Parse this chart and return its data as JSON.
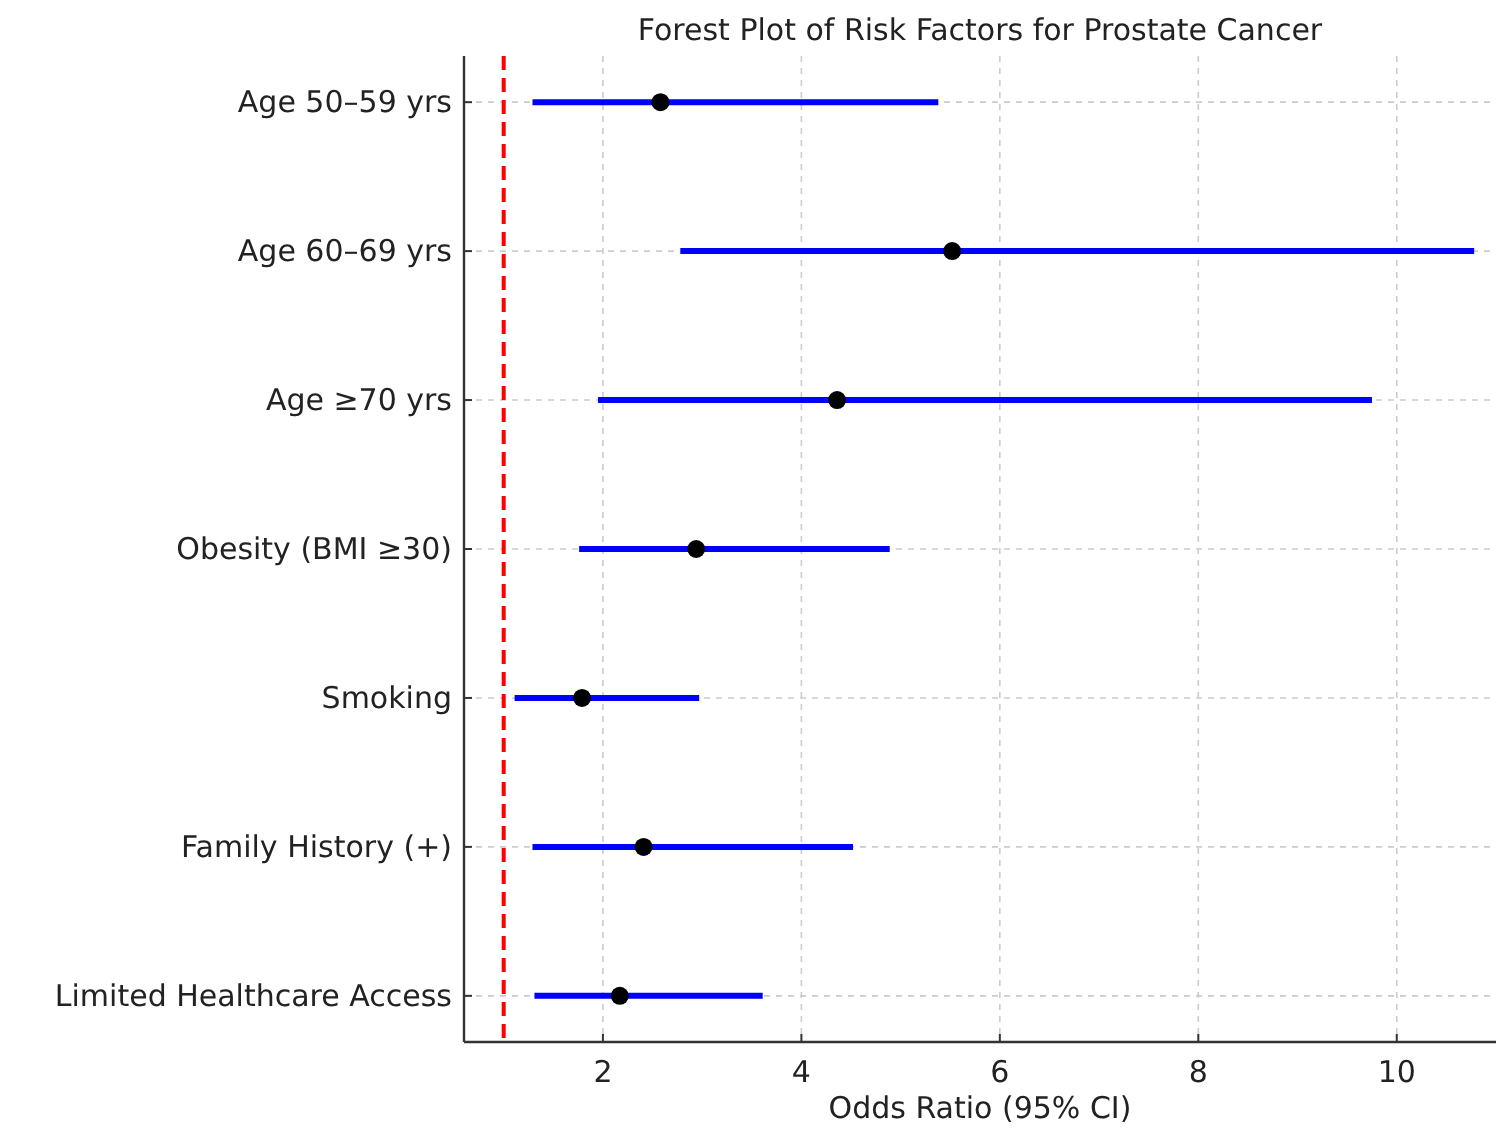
{
  "chart_data": {
    "type": "scatter",
    "orientation": "horizontal",
    "title": "Forest Plot of Risk Factors for Prostate Cancer",
    "xlabel": "Odds Ratio (95% CI)",
    "categories": [
      "Age 50–59 yrs",
      "Age 60–69 yrs",
      "Age ≥70 yrs",
      "Obesity (BMI ≥30)",
      "Smoking",
      "Family History (+)",
      "Limited Healthcare Access"
    ],
    "series": [
      {
        "color": "#000000",
        "values": [
          2.58,
          5.52,
          4.36,
          2.94,
          1.79,
          2.41,
          2.17
        ],
        "errors": [
          [
            1.29,
            5.38
          ],
          [
            2.78,
            10.78
          ],
          [
            1.95,
            9.75
          ],
          [
            1.76,
            4.89
          ],
          [
            1.11,
            2.97
          ],
          [
            1.29,
            4.52
          ],
          [
            1.31,
            3.61
          ]
        ]
      }
    ],
    "xlim": [
      0.6,
      11.0
    ],
    "xticks": [
      2,
      4,
      6,
      8,
      10
    ],
    "grid": true,
    "marker": "circle",
    "ref_lines": [
      {
        "axis": "x",
        "value": 1,
        "color": "#ff0000",
        "line_style": "dashed"
      }
    ]
  }
}
